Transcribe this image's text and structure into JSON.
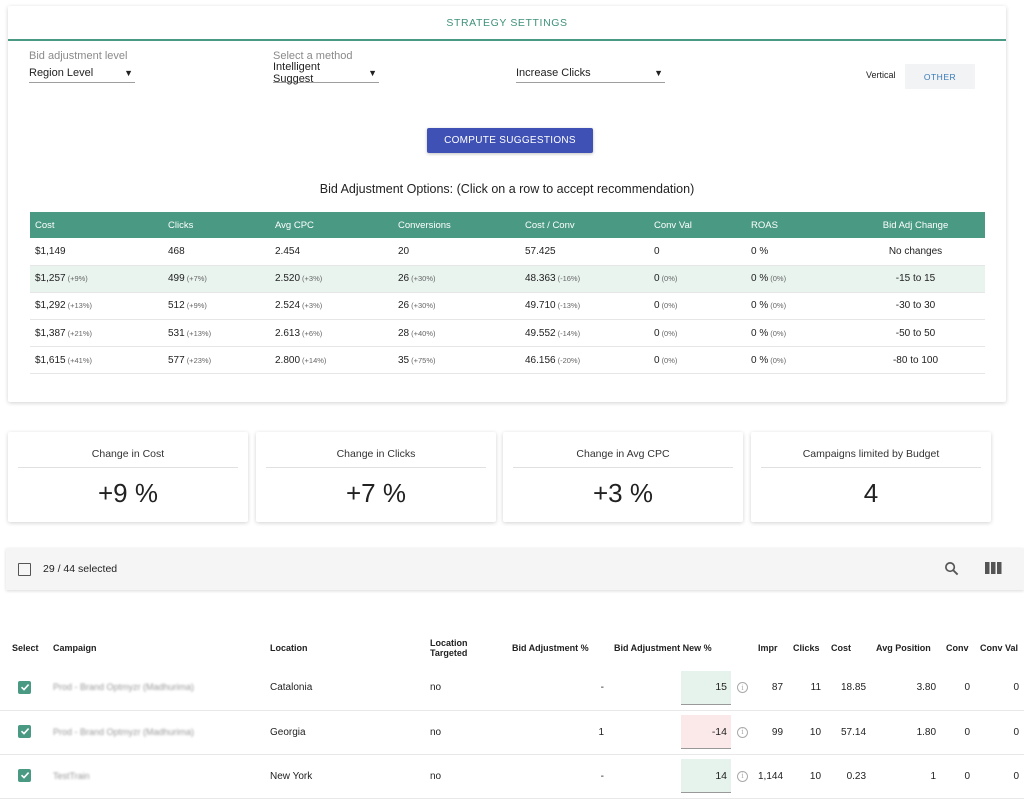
{
  "strategy": {
    "title": "STRATEGY SETTINGS",
    "bid_adjustment_level": {
      "label": "Bid adjustment level",
      "value": "Region Level"
    },
    "method": {
      "label": "Select a method",
      "value": "Intelligent Suggest"
    },
    "goal": {
      "value": "Increase Clicks"
    },
    "vertical_label": "Vertical",
    "vertical_value": "OTHER",
    "compute_label": "COMPUTE SUGGESTIONS",
    "options_title": "Bid Adjustment Options: (Click on a row to accept recommendation)",
    "accent_color": "#4a9a83",
    "button_color": "#3f51b5"
  },
  "options_table": {
    "headers": [
      "Cost",
      "Clicks",
      "Avg CPC",
      "Conversions",
      "Cost / Conv",
      "Conv Val",
      "ROAS",
      "Bid Adj Change"
    ],
    "rows": [
      {
        "cost": "$1,149",
        "cost_d": "",
        "clicks": "468",
        "clicks_d": "",
        "cpc": "2.454",
        "cpc_d": "",
        "conv": "20",
        "conv_d": "",
        "cpconv": "57.425",
        "cpconv_d": "",
        "convval": "0",
        "convval_d": "",
        "roas": "0 %",
        "roas_d": "",
        "change": "No changes"
      },
      {
        "cost": "$1,257",
        "cost_d": "(+9%)",
        "clicks": "499",
        "clicks_d": "(+7%)",
        "cpc": "2.520",
        "cpc_d": "(+3%)",
        "conv": "26",
        "conv_d": "(+30%)",
        "cpconv": "48.363",
        "cpconv_d": "(-16%)",
        "convval": "0",
        "convval_d": "(0%)",
        "roas": "0 %",
        "roas_d": "(0%)",
        "change": "-15 to 15"
      },
      {
        "cost": "$1,292",
        "cost_d": "(+13%)",
        "clicks": "512",
        "clicks_d": "(+9%)",
        "cpc": "2.524",
        "cpc_d": "(+3%)",
        "conv": "26",
        "conv_d": "(+30%)",
        "cpconv": "49.710",
        "cpconv_d": "(-13%)",
        "convval": "0",
        "convval_d": "(0%)",
        "roas": "0 %",
        "roas_d": "(0%)",
        "change": "-30 to 30"
      },
      {
        "cost": "$1,387",
        "cost_d": "(+21%)",
        "clicks": "531",
        "clicks_d": "(+13%)",
        "cpc": "2.613",
        "cpc_d": "(+6%)",
        "conv": "28",
        "conv_d": "(+40%)",
        "cpconv": "49.552",
        "cpconv_d": "(-14%)",
        "convval": "0",
        "convval_d": "(0%)",
        "roas": "0 %",
        "roas_d": "(0%)",
        "change": "-50 to 50"
      },
      {
        "cost": "$1,615",
        "cost_d": "(+41%)",
        "clicks": "577",
        "clicks_d": "(+23%)",
        "cpc": "2.800",
        "cpc_d": "(+14%)",
        "conv": "35",
        "conv_d": "(+75%)",
        "cpconv": "46.156",
        "cpconv_d": "(-20%)",
        "convval": "0",
        "convval_d": "(0%)",
        "roas": "0 %",
        "roas_d": "(0%)",
        "change": "-80 to 100"
      }
    ],
    "selected_row": 1
  },
  "kpis": [
    {
      "label": "Change in Cost",
      "value": "+9 %"
    },
    {
      "label": "Change in Clicks",
      "value": "+7 %"
    },
    {
      "label": "Change in Avg CPC",
      "value": "+3 %"
    },
    {
      "label": "Campaigns limited by Budget",
      "value": "4"
    }
  ],
  "toolbar": {
    "selection_text": "29 / 44 selected",
    "search_icon": "search-icon",
    "columns_icon": "view-columns-icon"
  },
  "campaign_table": {
    "headers": {
      "select": "Select",
      "campaign": "Campaign",
      "location": "Location",
      "location_targeted_1": "Location",
      "location_targeted_2": "Targeted",
      "bid_adj": "Bid Adjustment %",
      "bid_adj_new": "Bid Adjustment New %",
      "impr": "Impr",
      "clicks": "Clicks",
      "cost": "Cost",
      "avg_position": "Avg Position",
      "conv": "Conv",
      "conv_val": "Conv Val"
    },
    "rows": [
      {
        "campaign": "Prod - Brand Optmyzr (Madhurima)",
        "location": "Catalonia",
        "targeted": "no",
        "bid_adj": "-",
        "new_pct": "15",
        "new_tone": "green",
        "impr": "87",
        "clicks": "11",
        "cost": "18.85",
        "avg_position": "3.80",
        "conv": "0",
        "conv_val": "0"
      },
      {
        "campaign": "Prod - Brand Optmyzr (Madhurima)",
        "location": "Georgia",
        "targeted": "no",
        "bid_adj": "1",
        "new_pct": "-14",
        "new_tone": "red",
        "impr": "99",
        "clicks": "10",
        "cost": "57.14",
        "avg_position": "1.80",
        "conv": "0",
        "conv_val": "0"
      },
      {
        "campaign": "TestTrain",
        "location": "New York",
        "targeted": "no",
        "bid_adj": "-",
        "new_pct": "14",
        "new_tone": "green",
        "impr": "1,144",
        "clicks": "10",
        "cost": "0.23",
        "avg_position": "1",
        "conv": "0",
        "conv_val": "0"
      }
    ]
  }
}
